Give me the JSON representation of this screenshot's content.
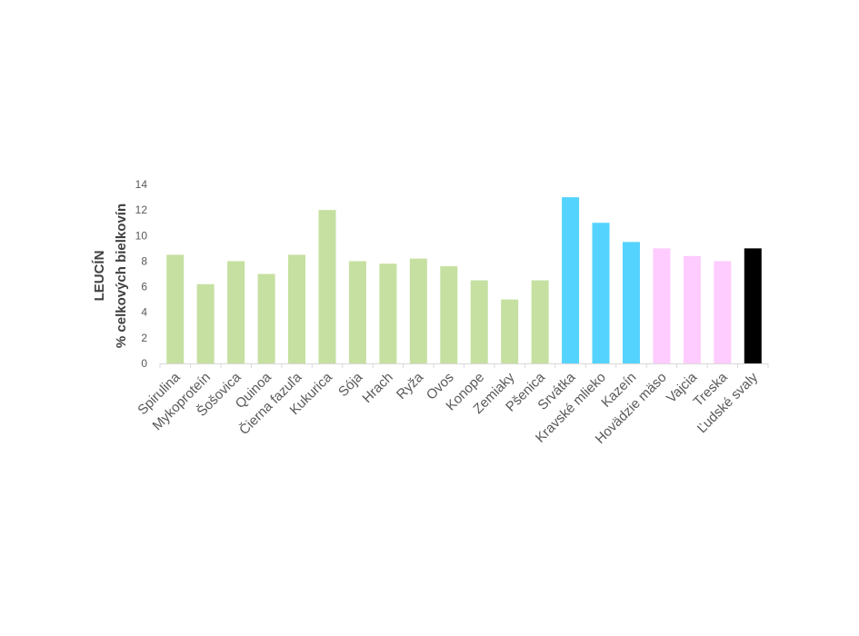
{
  "chart_data": {
    "type": "bar",
    "title": "",
    "xlabel": "",
    "ylabel": "LEUCÍN",
    "ylabel2": "% celkových bielkovín",
    "ylim": [
      0,
      14
    ],
    "yticks": [
      0,
      2,
      4,
      6,
      8,
      10,
      12,
      14
    ],
    "grid": false,
    "legend": "none",
    "categories": [
      "Spirulina",
      "Mykoproteín",
      "Šošovica",
      "Quinoa",
      "Čierna fazuľa",
      "Kukurica",
      "Sója",
      "Hrach",
      "Ryža",
      "Ovos",
      "Konope",
      "Zemiaky",
      "Pšenica",
      "Srvátka",
      "Kravské mlieko",
      "Kazeín",
      "Hovädzie mäso",
      "Vajcia",
      "Treska",
      "Ľudské svaly"
    ],
    "values": [
      8.5,
      6.2,
      8.0,
      7.0,
      8.5,
      12.0,
      8.0,
      7.8,
      8.2,
      7.6,
      6.5,
      5.0,
      6.5,
      13.0,
      11.0,
      9.5,
      9.0,
      8.4,
      8.0,
      9.0
    ],
    "bar_colors": [
      "#c5e0a0",
      "#c5e0a0",
      "#c5e0a0",
      "#c5e0a0",
      "#c5e0a0",
      "#c5e0a0",
      "#c5e0a0",
      "#c5e0a0",
      "#c5e0a0",
      "#c5e0a0",
      "#c5e0a0",
      "#c5e0a0",
      "#c5e0a0",
      "#55d3ff",
      "#55d3ff",
      "#55d3ff",
      "#ffccff",
      "#ffccff",
      "#ffccff",
      "#000000"
    ],
    "axis_color": "#d9d9d9"
  }
}
